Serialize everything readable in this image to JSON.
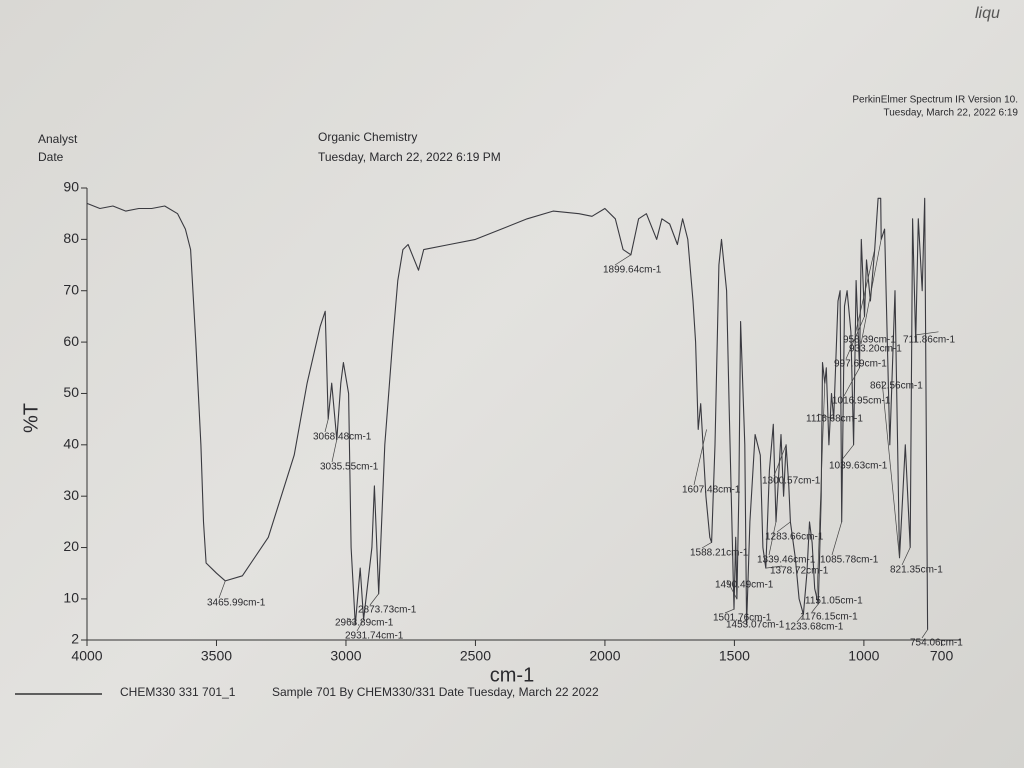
{
  "header": {
    "analyst": "Analyst",
    "date": "Date",
    "course": "Organic Chemistry",
    "timestamp": "Tuesday, March 22, 2022 6:19 PM",
    "software": "PerkinElmer Spectrum IR Version 10.",
    "software_timestamp": "Tuesday, March 22, 2022 6:19",
    "handwriting": "liqu"
  },
  "chart_data": {
    "type": "line",
    "xlabel": "cm-1",
    "ylabel": "%T",
    "xlim": [
      4000,
      625
    ],
    "ylim": [
      2,
      90
    ],
    "xticks": [
      4000,
      3500,
      3000,
      2500,
      2000,
      1500,
      1000,
      700
    ],
    "yticks": [
      2,
      10,
      20,
      30,
      40,
      50,
      60,
      70,
      80,
      90
    ],
    "sample_description": "Sample 701 By CHEM330/331 Date Tuesday, March 22 2022",
    "series": [
      {
        "name": "CHEM330 331 701_1",
        "color": "#3a3a40",
        "x": [
          4000,
          3950,
          3900,
          3850,
          3800,
          3750,
          3700,
          3650,
          3620,
          3600,
          3580,
          3560,
          3550,
          3540,
          3500,
          3465.99,
          3400,
          3300,
          3200,
          3150,
          3100,
          3080,
          3068.48,
          3055,
          3035.55,
          3020,
          3010,
          2990,
          2980,
          2963.89,
          2945,
          2931.74,
          2900,
          2890,
          2873.73,
          2850,
          2820,
          2800,
          2780,
          2760,
          2720,
          2700,
          2600,
          2500,
          2400,
          2300,
          2200,
          2100,
          2050,
          2000,
          1960,
          1930,
          1899.64,
          1870,
          1840,
          1800,
          1780,
          1750,
          1720,
          1700,
          1680,
          1660,
          1650,
          1640,
          1630,
          1610,
          1595,
          1588.21,
          1575,
          1560,
          1550,
          1530,
          1520,
          1505,
          1501.76,
          1495,
          1490.49,
          1483,
          1476,
          1460,
          1453.07,
          1440,
          1420,
          1400,
          1390,
          1378.72,
          1365,
          1350,
          1339.46,
          1320,
          1310,
          1300.57,
          1290,
          1283.66,
          1265,
          1250,
          1233.68,
          1220,
          1210,
          1200,
          1190,
          1176.15,
          1165,
          1160,
          1151.05,
          1145,
          1135,
          1125,
          1116.68,
          1100,
          1092,
          1085.78,
          1075,
          1065,
          1050,
          1039.63,
          1030,
          1016.95,
          1010,
          997.69,
          990,
          975,
          958.39,
          945,
          935,
          933.2,
          920,
          900,
          880,
          862.56,
          850,
          840,
          821.35,
          812,
          800,
          790,
          775,
          765,
          754.06
        ],
        "values": [
          87,
          86,
          86.5,
          85.5,
          86,
          86,
          86.5,
          85,
          82,
          78,
          60,
          40,
          25,
          17,
          15,
          13.5,
          14.5,
          22,
          38,
          52,
          63,
          66,
          45,
          52,
          41,
          52,
          56,
          50,
          20,
          5,
          16,
          6,
          20,
          32,
          11,
          40,
          60,
          72,
          78,
          79,
          74,
          78,
          79,
          80,
          82,
          84,
          85.5,
          85,
          84.5,
          86,
          84,
          78,
          77,
          84,
          85,
          80,
          84,
          83,
          79,
          84,
          80,
          68,
          60,
          43,
          48,
          30,
          22,
          21,
          40,
          75,
          80,
          70,
          47,
          15,
          8,
          22,
          10,
          30,
          64,
          40,
          5,
          25,
          42,
          38,
          20,
          16,
          35,
          44,
          25,
          42,
          30,
          40,
          32,
          25,
          18,
          10,
          7,
          15,
          25,
          21,
          12,
          9,
          30,
          56,
          52,
          55,
          40,
          50,
          45,
          68,
          70,
          25,
          67,
          70,
          62,
          40,
          72,
          55,
          80,
          65,
          76,
          68,
          78,
          88,
          88,
          80,
          82,
          40,
          70,
          18,
          30,
          40,
          20,
          84,
          60,
          84,
          70,
          88,
          4
        ]
      }
    ],
    "annotations": [
      {
        "x": 3465.99,
        "y": 13.5,
        "label": "3465.99cm-1"
      },
      {
        "x": 3068.48,
        "y": 45,
        "label": "3068.48cm-1"
      },
      {
        "x": 3035.55,
        "y": 41,
        "label": "3035.55cm-1"
      },
      {
        "x": 2963.89,
        "y": 5,
        "label": "2963.89cm-1"
      },
      {
        "x": 2931.74,
        "y": 6,
        "label": "2931.74cm-1"
      },
      {
        "x": 2873.73,
        "y": 11,
        "label": "2873.73cm-1"
      },
      {
        "x": 1899.64,
        "y": 77,
        "label": "1899.64cm-1"
      },
      {
        "x": 1607.48,
        "y": 43,
        "label": "1607.48cm-1"
      },
      {
        "x": 1588.21,
        "y": 21,
        "label": "1588.21cm-1"
      },
      {
        "x": 1501.76,
        "y": 8,
        "label": "1501.76cm-1"
      },
      {
        "x": 1490.49,
        "y": 10,
        "label": "1490.49cm-1"
      },
      {
        "x": 1453.07,
        "y": 5,
        "label": "1453.07cm-1"
      },
      {
        "x": 1378.72,
        "y": 16,
        "label": "1378.72cm-1"
      },
      {
        "x": 1339.46,
        "y": 25,
        "label": "1339.46cm-1"
      },
      {
        "x": 1300.57,
        "y": 40,
        "label": "1300.57cm-1"
      },
      {
        "x": 1283.66,
        "y": 25,
        "label": "1283.66cm-1"
      },
      {
        "x": 1233.68,
        "y": 7,
        "label": "1233.68cm-1"
      },
      {
        "x": 1176.15,
        "y": 9,
        "label": "1176.15cm-1"
      },
      {
        "x": 1151.05,
        "y": 52,
        "label": "1151.05cm-1"
      },
      {
        "x": 1116.68,
        "y": 45,
        "label": "1116.68cm-1"
      },
      {
        "x": 1085.78,
        "y": 25,
        "label": "1085.78cm-1"
      },
      {
        "x": 1039.63,
        "y": 40,
        "label": "1039.63cm-1"
      },
      {
        "x": 1016.95,
        "y": 55,
        "label": "1016.95cm-1"
      },
      {
        "x": 997.69,
        "y": 65,
        "label": "997.69cm-1"
      },
      {
        "x": 958.39,
        "y": 78,
        "label": "958.39cm-1"
      },
      {
        "x": 933.2,
        "y": 80,
        "label": "933.20cm-1"
      },
      {
        "x": 862.56,
        "y": 18,
        "label": "862.56cm-1"
      },
      {
        "x": 821.35,
        "y": 20,
        "label": "821.35cm-1"
      },
      {
        "x": 754.06,
        "y": 4,
        "label": "754.06cm-1"
      },
      {
        "x": 711.86,
        "y": 62,
        "label": "711.86cm-1"
      }
    ]
  }
}
